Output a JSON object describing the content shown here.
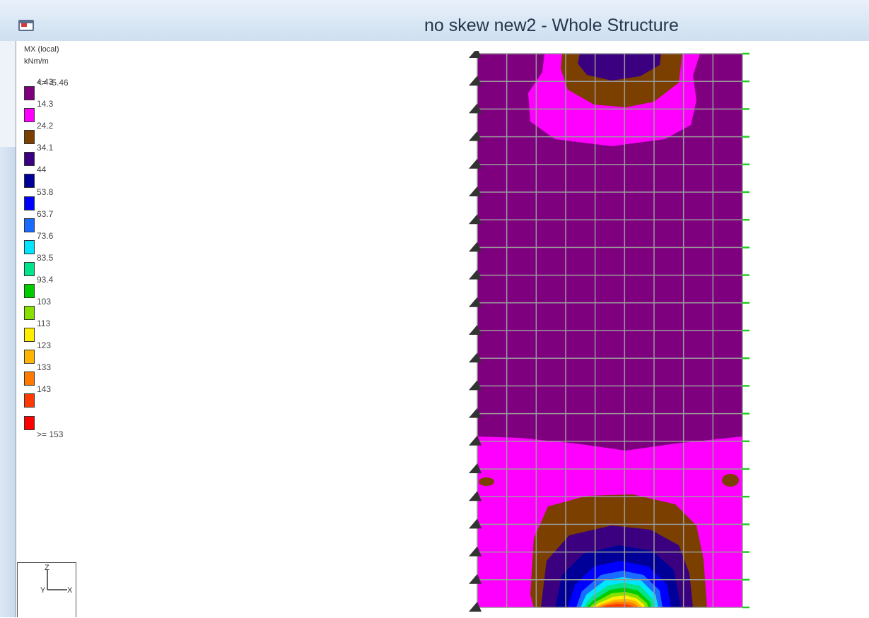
{
  "window": {
    "title": "no skew new2 - Whole Structure"
  },
  "legend": {
    "quantity": "MX (local)",
    "units": "kNm/m",
    "start_label": "<= -5.46",
    "end_label": ">= 153",
    "levels": [
      {
        "label": "4.43",
        "color": "#7f007f"
      },
      {
        "label": "14.3",
        "color": "#ff00ff"
      },
      {
        "label": "24.2",
        "color": "#7b3f00"
      },
      {
        "label": "34.1",
        "color": "#3a0080"
      },
      {
        "label": "44",
        "color": "#000099"
      },
      {
        "label": "53.8",
        "color": "#0000ff"
      },
      {
        "label": "63.7",
        "color": "#1a6bff"
      },
      {
        "label": "73.6",
        "color": "#00e5ff"
      },
      {
        "label": "83.5",
        "color": "#00e58a"
      },
      {
        "label": "93.4",
        "color": "#00cc00"
      },
      {
        "label": "103",
        "color": "#88e000"
      },
      {
        "label": "113",
        "color": "#ffee00"
      },
      {
        "label": "123",
        "color": "#ffb400"
      },
      {
        "label": "133",
        "color": "#ff7a00"
      },
      {
        "label": "143",
        "color": "#ff3a00"
      },
      {
        "label": "",
        "color": "#ff0000"
      }
    ]
  },
  "axis_triad": {
    "z_label": "Z",
    "y_label": "Y",
    "x_label": "X"
  }
}
